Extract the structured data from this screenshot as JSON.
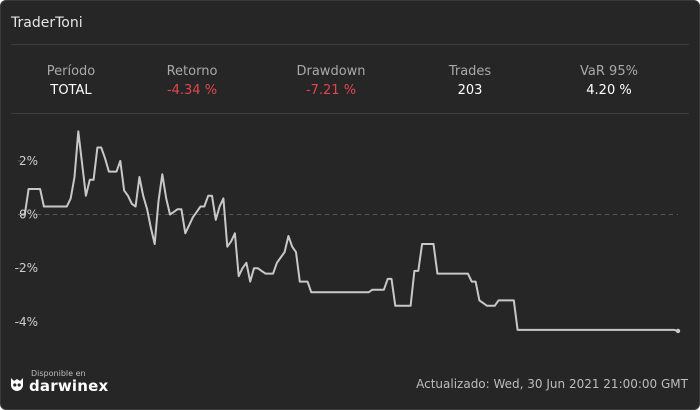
{
  "widget": {
    "title": "TraderToni",
    "stats": [
      {
        "label": "Período",
        "value": "TOTAL",
        "negative": false
      },
      {
        "label": "Retorno",
        "value": "-4.34 %",
        "negative": true
      },
      {
        "label": "Drawdown",
        "value": "-7.21 %",
        "negative": true
      },
      {
        "label": "Trades",
        "value": "203",
        "negative": false
      },
      {
        "label": "VaR 95%",
        "value": "4.20 %",
        "negative": false
      }
    ],
    "brand": {
      "small": "Disponible en",
      "name": "darwinex"
    },
    "updated": "Actualizado: Wed, 30 Jun 2021 21:00:00 GMT"
  },
  "colors": {
    "background": "#262626",
    "line": "#c8c8c8",
    "negative": "#e0474c",
    "zero_line": "#555555"
  },
  "chart_data": {
    "type": "line",
    "ylim": [
      -4.9,
      3.3
    ],
    "y_ticks": [
      2,
      0,
      -2,
      -4
    ],
    "y_tick_labels": [
      "2%",
      "0%",
      "-2%",
      "-4%"
    ],
    "grid": false,
    "zero_line": "dashed",
    "series": [
      {
        "values": [
          0,
          0,
          0.95,
          0.95,
          0.95,
          0.95,
          0.3,
          0.3,
          0.3,
          0.3,
          0.3,
          0.3,
          0.3,
          0.6,
          1.4,
          3.1,
          1.9,
          0.7,
          1.3,
          1.3,
          2.5,
          2.5,
          2.1,
          1.6,
          1.6,
          1.6,
          2.0,
          0.9,
          0.7,
          0.4,
          0.3,
          1.4,
          0.7,
          0.2,
          -0.5,
          -1.1,
          0.5,
          1.5,
          0.6,
          0,
          0.1,
          0.2,
          0.2,
          -0.7,
          -0.4,
          -0.1,
          0.1,
          0.3,
          0.3,
          0.7,
          0.7,
          -0.2,
          0.3,
          0.6,
          -1.2,
          -1.0,
          -0.7,
          -2.3,
          -2.0,
          -1.8,
          -2.5,
          -2.0,
          -2.0,
          -2.1,
          -2.2,
          -2.2,
          -2.2,
          -1.8,
          -1.6,
          -1.4,
          -0.8,
          -1.2,
          -1.4,
          -2.5,
          -2.5,
          -2.5,
          -2.9,
          -2.9,
          -2.9,
          -2.9,
          -2.9,
          -2.9,
          -2.9,
          -2.9,
          -2.9,
          -2.9,
          -2.9,
          -2.9,
          -2.9,
          -2.9,
          -2.9,
          -2.9,
          -2.8,
          -2.8,
          -2.8,
          -2.8,
          -2.4,
          -2.4,
          -3.4,
          -3.4,
          -3.4,
          -3.4,
          -3.4,
          -2.1,
          -2.1,
          -1.1,
          -1.1,
          -1.1,
          -1.1,
          -2.2,
          -2.2,
          -2.2,
          -2.2,
          -2.2,
          -2.2,
          -2.2,
          -2.2,
          -2.2,
          -2.5,
          -2.5,
          -3.2,
          -3.3,
          -3.4,
          -3.4,
          -3.4,
          -3.2,
          -3.2,
          -3.2,
          -3.2,
          -3.2,
          -4.3,
          -4.3,
          -4.3,
          -4.3,
          -4.3,
          -4.3,
          -4.3,
          -4.3,
          -4.3,
          -4.3,
          -4.3,
          -4.3,
          -4.3,
          -4.3,
          -4.3,
          -4.3,
          -4.3,
          -4.3,
          -4.3,
          -4.3,
          -4.3,
          -4.3,
          -4.3,
          -4.3,
          -4.3,
          -4.3,
          -4.3,
          -4.3,
          -4.3,
          -4.3,
          -4.3,
          -4.3,
          -4.3,
          -4.3,
          -4.3,
          -4.3,
          -4.3,
          -4.3,
          -4.3,
          -4.3,
          -4.3,
          -4.3,
          -4.34
        ]
      }
    ]
  }
}
